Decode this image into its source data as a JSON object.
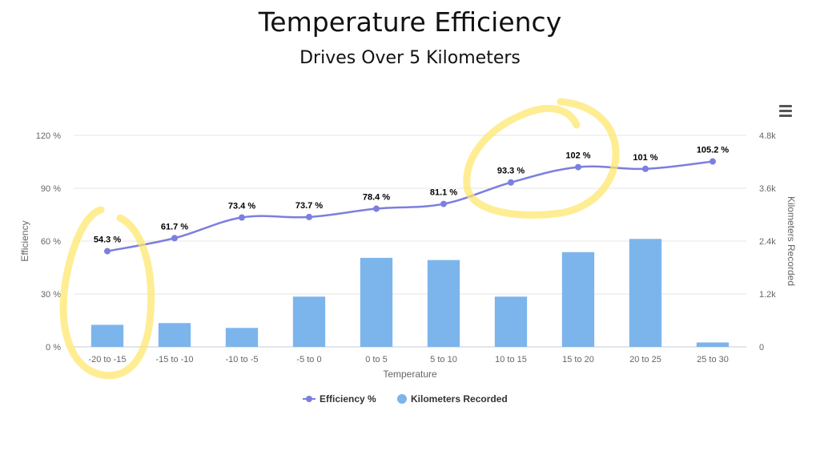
{
  "chart_data": {
    "type": "bar+line",
    "title": "Temperature Efficiency",
    "subtitle": "Drives Over 5 Kilometers",
    "xlabel": "Temperature",
    "categories": [
      "-20 to -15",
      "-15 to -10",
      "-10 to -5",
      "-5 to 0",
      "0 to 5",
      "5 to 10",
      "10 to 15",
      "15 to 20",
      "20 to 25",
      "25 to 30"
    ],
    "series": [
      {
        "name": "Efficiency %",
        "type": "line",
        "axis": "left",
        "values": [
          54.3,
          61.7,
          73.4,
          73.7,
          78.4,
          81.1,
          93.3,
          102,
          101,
          105.2
        ],
        "data_labels": [
          "54.3 %",
          "61.7 %",
          "73.4 %",
          "73.7 %",
          "78.4 %",
          "81.1 %",
          "93.3 %",
          "102 %",
          "101 %",
          "105.2 %"
        ],
        "color": "#7b7fdd"
      },
      {
        "name": "Kilometers Recorded",
        "type": "bar",
        "axis": "right",
        "values": [
          500,
          540,
          430,
          1140,
          2020,
          1970,
          1140,
          2150,
          2450,
          100
        ],
        "color": "#7cb5ec"
      }
    ],
    "left_axis": {
      "label": "Efficiency",
      "min": 0,
      "max": 120,
      "ticks": [
        0,
        30,
        60,
        90,
        120
      ],
      "tick_labels": [
        "0 %",
        "30 %",
        "60 %",
        "90 %",
        "120 %"
      ]
    },
    "right_axis": {
      "label": "Kilometers Recorded",
      "min": 0,
      "max": 4800,
      "ticks": [
        0,
        1200,
        2400,
        3600,
        4800
      ],
      "tick_labels": [
        "0",
        "1.2k",
        "2.4k",
        "3.6k",
        "4.8k"
      ]
    },
    "grid": true,
    "legend": {
      "position": "bottom-center",
      "items": [
        "Efficiency %",
        "Kilometers Recorded"
      ]
    },
    "annotations": [
      {
        "type": "hand-drawn-circle",
        "color": "#fde66a",
        "around": "-20 to -15"
      },
      {
        "type": "hand-drawn-circle",
        "color": "#fde66a",
        "around": "10 to 15 / 15 to 20"
      }
    ]
  },
  "menu": {
    "icon": "hamburger-menu-icon"
  }
}
